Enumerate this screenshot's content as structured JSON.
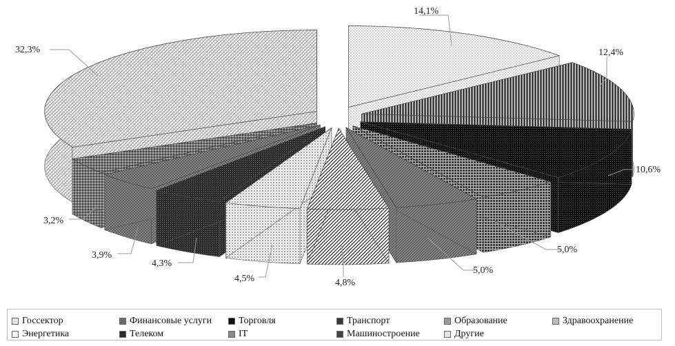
{
  "chart_data": {
    "type": "pie",
    "title": "",
    "categories": [
      "Госсектор",
      "Финансовые услуги",
      "Торговля",
      "Транспорт",
      "Образование",
      "Здравоохранение",
      "Энергетика",
      "Телеком",
      "IT",
      "Машиностроение",
      "Другие"
    ],
    "values": [
      14.1,
      12.4,
      10.6,
      5.0,
      5.0,
      4.8,
      4.5,
      4.3,
      3.9,
      3.2,
      32.3
    ],
    "data_labels": [
      "14,1%",
      "12,4%",
      "10,6%",
      "5,0%",
      "5,0%",
      "4,8%",
      "4,5%",
      "4,3%",
      "3,9%",
      "3,2%",
      "32,3%"
    ],
    "legend_position": "bottom",
    "style": "3d-exploded-pie, monochrome hatched patterns"
  },
  "legend": {
    "items": [
      "Госсектор",
      "Финансовые услуги",
      "Торговля",
      "Транспорт",
      "Образование",
      "Здравоохранение",
      "Энергетика",
      "Телеком",
      "IT",
      "Машиностроение",
      "Другие"
    ]
  }
}
